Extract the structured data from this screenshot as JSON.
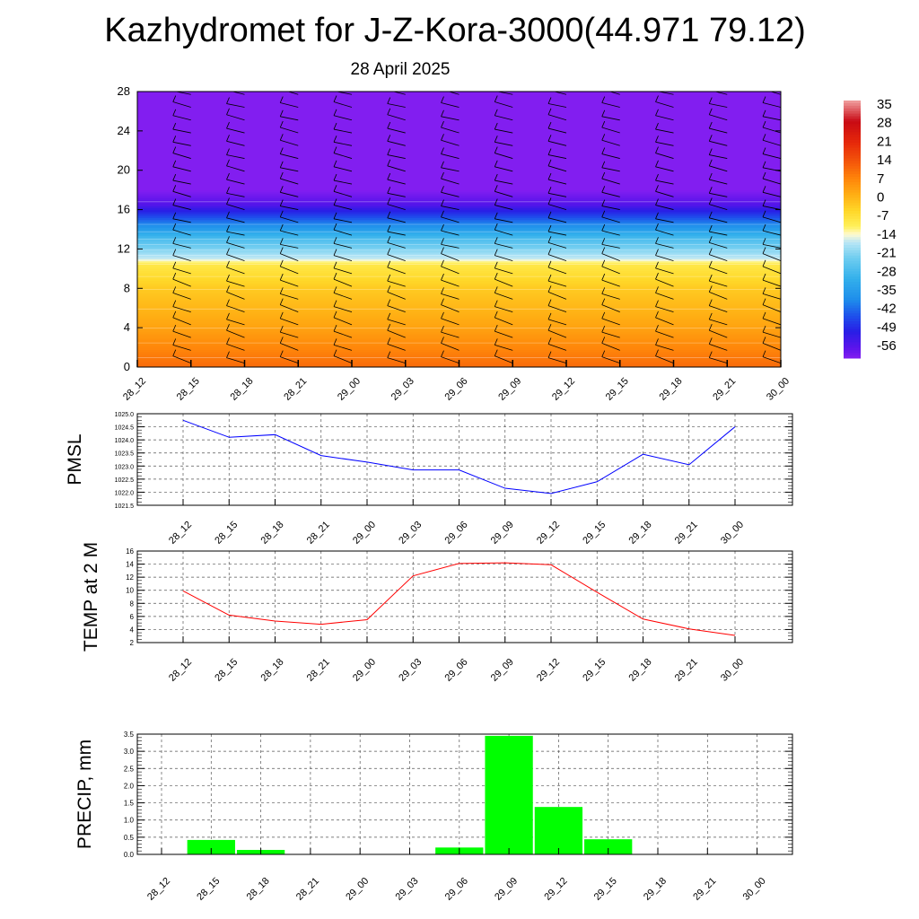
{
  "title": "Kazhydromet for J-Z-Kora-3000(44.971 79.12)",
  "subtitle": "28 April 2025",
  "time_labels": [
    "28_12",
    "28_15",
    "28_18",
    "28_21",
    "29_00",
    "29_03",
    "29_06",
    "29_09",
    "29_12",
    "29_15",
    "29_18",
    "29_21",
    "30_00"
  ],
  "colors": {
    "pmsl": "#0000ff",
    "temp": "#ff0000",
    "precip": "#00ff00"
  },
  "chart_data": [
    {
      "type": "heatmap",
      "ylim": [
        0,
        28
      ],
      "yticks": [
        "0",
        "4",
        "8",
        "12",
        "16",
        "20",
        "24",
        "28"
      ],
      "x": [
        "28_12",
        "28_15",
        "28_18",
        "28_21",
        "29_00",
        "29_03",
        "29_06",
        "29_09",
        "29_12",
        "29_15",
        "29_18",
        "29_21",
        "30_00"
      ],
      "colorbar": {
        "labels": [
          "35",
          "28",
          "21",
          "14",
          "7",
          "0",
          "-7",
          "-14",
          "-21",
          "-28",
          "-35",
          "-42",
          "-49",
          "-56"
        ],
        "range": [
          -60,
          38
        ]
      },
      "profile": [
        [
          0,
          12
        ],
        [
          4,
          4
        ],
        [
          8,
          -2
        ],
        [
          10.5,
          -8
        ],
        [
          11,
          -15
        ],
        [
          13,
          -26
        ],
        [
          15,
          -42
        ],
        [
          16.5,
          -55
        ],
        [
          18,
          -60
        ],
        [
          28,
          -60
        ]
      ],
      "overlay": "wind barbs"
    },
    {
      "type": "line",
      "ylabel": "PMSL",
      "ylim": [
        1021.5,
        1025.0
      ],
      "yticks": [
        "1021.5",
        "1022.0",
        "1022.5",
        "1023.0",
        "1023.5",
        "1024.0",
        "1024.5",
        "1025.0"
      ],
      "x": [
        "28_12",
        "28_15",
        "28_18",
        "28_21",
        "29_00",
        "29_03",
        "29_06",
        "29_09",
        "29_12",
        "29_15",
        "29_18",
        "29_21",
        "30_00"
      ],
      "values": [
        1024.75,
        1024.1,
        1024.2,
        1023.4,
        1023.15,
        1022.85,
        1022.85,
        1022.15,
        1021.95,
        1022.4,
        1023.45,
        1023.05,
        1024.5
      ]
    },
    {
      "type": "line",
      "ylabel": "TEMP at 2 M",
      "ylim": [
        2,
        16
      ],
      "yticks": [
        "2",
        "4",
        "6",
        "8",
        "10",
        "12",
        "14",
        "16"
      ],
      "x": [
        "28_12",
        "28_15",
        "28_18",
        "28_21",
        "29_00",
        "29_03",
        "29_06",
        "29_09",
        "29_12",
        "29_15",
        "29_18",
        "29_21",
        "30_00"
      ],
      "values": [
        9.9,
        6.2,
        5.3,
        4.8,
        5.5,
        12.2,
        14.1,
        14.2,
        13.9,
        9.7,
        5.6,
        4.1,
        3.1
      ]
    },
    {
      "type": "bar",
      "ylabel": "PRECIP, mm",
      "ylim": [
        0,
        3.5
      ],
      "yticks": [
        "0.0",
        "0.5",
        "1.0",
        "1.5",
        "2.0",
        "2.5",
        "3.0",
        "3.5"
      ],
      "categories": [
        "28_12",
        "28_15",
        "28_18",
        "28_21",
        "29_00",
        "29_03",
        "29_06",
        "29_09",
        "29_12",
        "29_15",
        "29_18",
        "29_21",
        "30_00"
      ],
      "values": [
        0,
        0.42,
        0.13,
        0,
        0,
        0,
        0.2,
        3.45,
        1.38,
        0.44,
        0,
        0,
        0
      ]
    }
  ]
}
